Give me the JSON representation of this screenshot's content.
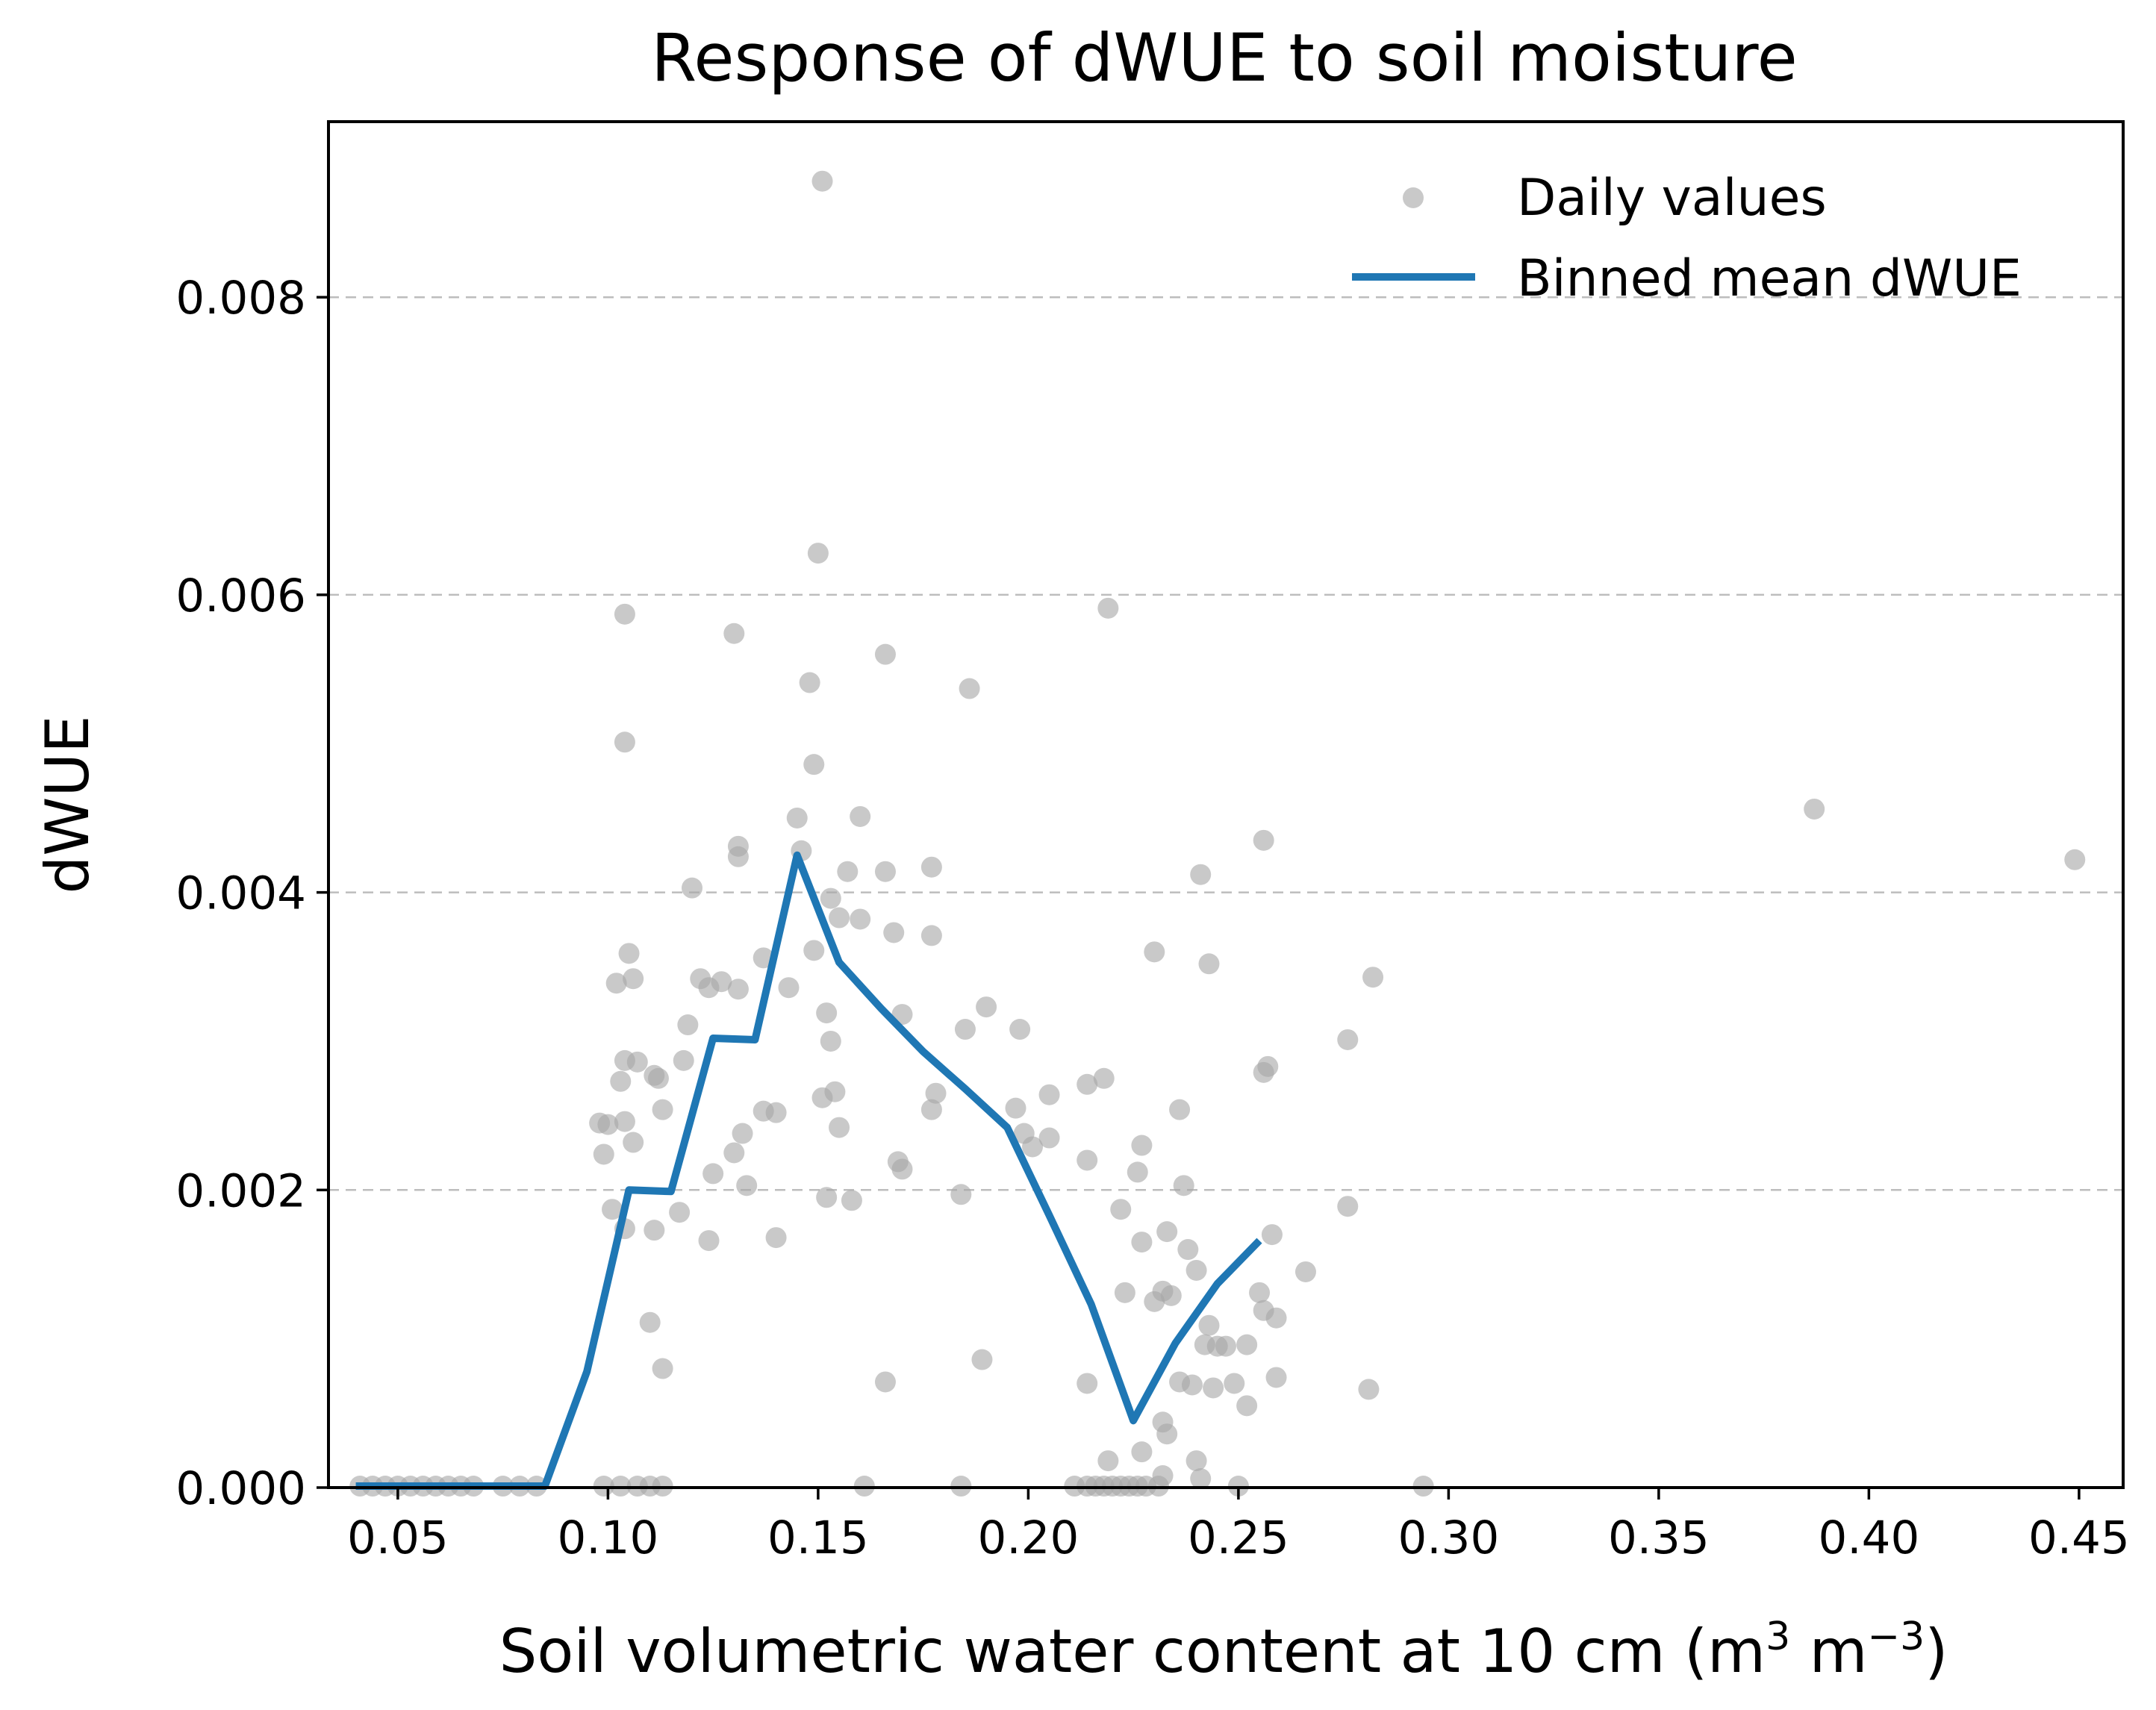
{
  "chart_data": {
    "type": "scatter",
    "title": "Response of dWUE to soil moisture",
    "xlabel": "Soil volumetric water content at 10 cm (m",
    "xlabel_sup1": "3",
    "xlabel_mid": " m",
    "xlabel_sup2": "−3",
    "xlabel_end": ")",
    "ylabel": "dWUE",
    "xlim": [
      0.0335,
      0.4605
    ],
    "ylim": [
      0.0,
      0.00918
    ],
    "xticks": [
      0.05,
      0.1,
      0.15,
      0.2,
      0.25,
      0.3,
      0.35,
      0.4,
      0.45
    ],
    "xtick_labels": [
      "0.05",
      "0.10",
      "0.15",
      "0.20",
      "0.25",
      "0.30",
      "0.35",
      "0.40",
      "0.45"
    ],
    "yticks": [
      0.0,
      0.002,
      0.004,
      0.006,
      0.008
    ],
    "ytick_labels": [
      "0.000",
      "0.002",
      "0.004",
      "0.006",
      "0.008"
    ],
    "grid": "horizontal dashed",
    "legend_position": "top-right",
    "colors": {
      "points": "#a8a8a8",
      "line": "#1f77b4",
      "grid": "#bdbdbd"
    },
    "series": [
      {
        "name": "Daily values",
        "kind": "scatter",
        "points": [
          [
            0.151,
            0.00878
          ],
          [
            0.15,
            0.00628
          ],
          [
            0.104,
            0.00587
          ],
          [
            0.13,
            0.00574
          ],
          [
            0.166,
            0.0056
          ],
          [
            0.219,
            0.00591
          ],
          [
            0.148,
            0.00541
          ],
          [
            0.186,
            0.00537
          ],
          [
            0.104,
            0.00501
          ],
          [
            0.149,
            0.00486
          ],
          [
            0.145,
            0.0045
          ],
          [
            0.16,
            0.00451
          ],
          [
            0.387,
            0.00456
          ],
          [
            0.256,
            0.00435
          ],
          [
            0.131,
            0.00431
          ],
          [
            0.146,
            0.00428
          ],
          [
            0.131,
            0.00424
          ],
          [
            0.449,
            0.00422
          ],
          [
            0.157,
            0.00414
          ],
          [
            0.166,
            0.00414
          ],
          [
            0.177,
            0.00417
          ],
          [
            0.241,
            0.00412
          ],
          [
            0.12,
            0.00403
          ],
          [
            0.153,
            0.00396
          ],
          [
            0.155,
            0.00383
          ],
          [
            0.16,
            0.00382
          ],
          [
            0.168,
            0.00373
          ],
          [
            0.177,
            0.00371
          ],
          [
            0.137,
            0.00356
          ],
          [
            0.105,
            0.00359
          ],
          [
            0.23,
            0.0036
          ],
          [
            0.149,
            0.00361
          ],
          [
            0.243,
            0.00352
          ],
          [
            0.102,
            0.00339
          ],
          [
            0.106,
            0.00342
          ],
          [
            0.122,
            0.00342
          ],
          [
            0.127,
            0.0034
          ],
          [
            0.131,
            0.00335
          ],
          [
            0.143,
            0.00336
          ],
          [
            0.124,
            0.00336
          ],
          [
            0.282,
            0.00343
          ],
          [
            0.19,
            0.00323
          ],
          [
            0.152,
            0.00319
          ],
          [
            0.17,
            0.00318
          ],
          [
            0.119,
            0.00311
          ],
          [
            0.185,
            0.00308
          ],
          [
            0.198,
            0.00308
          ],
          [
            0.276,
            0.00301
          ],
          [
            0.153,
            0.003
          ],
          [
            0.104,
            0.00287
          ],
          [
            0.107,
            0.00286
          ],
          [
            0.118,
            0.00287
          ],
          [
            0.111,
            0.00277
          ],
          [
            0.112,
            0.00275
          ],
          [
            0.103,
            0.00273
          ],
          [
            0.257,
            0.00283
          ],
          [
            0.256,
            0.00279
          ],
          [
            0.218,
            0.00275
          ],
          [
            0.214,
            0.00271
          ],
          [
            0.178,
            0.00265
          ],
          [
            0.154,
            0.00266
          ],
          [
            0.151,
            0.00262
          ],
          [
            0.205,
            0.00264
          ],
          [
            0.113,
            0.00254
          ],
          [
            0.137,
            0.00253
          ],
          [
            0.14,
            0.00252
          ],
          [
            0.177,
            0.00254
          ],
          [
            0.197,
            0.00255
          ],
          [
            0.236,
            0.00254
          ],
          [
            0.098,
            0.00245
          ],
          [
            0.1,
            0.00244
          ],
          [
            0.104,
            0.00246
          ],
          [
            0.132,
            0.00238
          ],
          [
            0.155,
            0.00242
          ],
          [
            0.199,
            0.00238
          ],
          [
            0.205,
            0.00235
          ],
          [
            0.106,
            0.00232
          ],
          [
            0.13,
            0.00225
          ],
          [
            0.099,
            0.00224
          ],
          [
            0.201,
            0.00229
          ],
          [
            0.227,
            0.0023
          ],
          [
            0.214,
            0.0022
          ],
          [
            0.169,
            0.00219
          ],
          [
            0.17,
            0.00214
          ],
          [
            0.125,
            0.00211
          ],
          [
            0.226,
            0.00212
          ],
          [
            0.133,
            0.00203
          ],
          [
            0.237,
            0.00203
          ],
          [
            0.152,
            0.00195
          ],
          [
            0.158,
            0.00193
          ],
          [
            0.184,
            0.00197
          ],
          [
            0.101,
            0.00187
          ],
          [
            0.117,
            0.00185
          ],
          [
            0.222,
            0.00187
          ],
          [
            0.276,
            0.00189
          ],
          [
            0.104,
            0.00174
          ],
          [
            0.111,
            0.00173
          ],
          [
            0.14,
            0.00168
          ],
          [
            0.124,
            0.00166
          ],
          [
            0.233,
            0.00172
          ],
          [
            0.258,
            0.0017
          ],
          [
            0.227,
            0.00165
          ],
          [
            0.238,
            0.0016
          ],
          [
            0.266,
            0.00145
          ],
          [
            0.24,
            0.00146
          ],
          [
            0.223,
            0.00131
          ],
          [
            0.23,
            0.00125
          ],
          [
            0.232,
            0.00132
          ],
          [
            0.234,
            0.00129
          ],
          [
            0.255,
            0.00131
          ],
          [
            0.256,
            0.00119
          ],
          [
            0.259,
            0.00114
          ],
          [
            0.243,
            0.00109
          ],
          [
            0.11,
            0.00111
          ],
          [
            0.242,
            0.00096
          ],
          [
            0.245,
            0.00095
          ],
          [
            0.247,
            0.00095
          ],
          [
            0.252,
            0.00096
          ],
          [
            0.113,
            0.0008
          ],
          [
            0.189,
            0.00086
          ],
          [
            0.166,
            0.00071
          ],
          [
            0.214,
            0.0007
          ],
          [
            0.236,
            0.00071
          ],
          [
            0.239,
            0.00069
          ],
          [
            0.249,
            0.0007
          ],
          [
            0.259,
            0.00074
          ],
          [
            0.281,
            0.00066
          ],
          [
            0.244,
            0.00067
          ],
          [
            0.252,
            0.00055
          ],
          [
            0.232,
            0.00044
          ],
          [
            0.233,
            0.00036
          ],
          [
            0.227,
            0.00024
          ],
          [
            0.219,
            0.00018
          ],
          [
            0.24,
            0.00018
          ],
          [
            0.232,
            8e-05
          ],
          [
            0.241,
            6e-05
          ],
          [
            0.041,
            1e-05
          ],
          [
            0.044,
            1e-05
          ],
          [
            0.047,
            1e-05
          ],
          [
            0.05,
            1e-05
          ],
          [
            0.053,
            1e-05
          ],
          [
            0.056,
            1e-05
          ],
          [
            0.059,
            1e-05
          ],
          [
            0.062,
            1e-05
          ],
          [
            0.065,
            1e-05
          ],
          [
            0.068,
            1e-05
          ],
          [
            0.075,
            1e-05
          ],
          [
            0.079,
            1e-05
          ],
          [
            0.083,
            1e-05
          ],
          [
            0.099,
            1e-05
          ],
          [
            0.103,
            1e-05
          ],
          [
            0.107,
            1e-05
          ],
          [
            0.11,
            1e-05
          ],
          [
            0.113,
            1e-05
          ],
          [
            0.161,
            1e-05
          ],
          [
            0.184,
            1e-05
          ],
          [
            0.211,
            1e-05
          ],
          [
            0.214,
            1e-05
          ],
          [
            0.216,
            1e-05
          ],
          [
            0.218,
            1e-05
          ],
          [
            0.22,
            1e-05
          ],
          [
            0.222,
            1e-05
          ],
          [
            0.224,
            1e-05
          ],
          [
            0.226,
            1e-05
          ],
          [
            0.228,
            1e-05
          ],
          [
            0.231,
            1e-05
          ],
          [
            0.25,
            1e-05
          ],
          [
            0.294,
            1e-05
          ]
        ]
      },
      {
        "name": "Binned mean dWUE",
        "kind": "line",
        "x": [
          0.04,
          0.045,
          0.055,
          0.065,
          0.075,
          0.085,
          0.095,
          0.105,
          0.115,
          0.125,
          0.135,
          0.145,
          0.155,
          0.165,
          0.175,
          0.185,
          0.195,
          0.205,
          0.215,
          0.225,
          0.235,
          0.245,
          0.255
        ],
        "y": [
          1e-05,
          1e-05,
          1e-05,
          1e-05,
          1e-05,
          1e-05,
          0.00078,
          0.002,
          0.00199,
          0.00302,
          0.00301,
          0.00425,
          0.00353,
          0.00322,
          0.00293,
          0.00268,
          0.00242,
          0.00183,
          0.00123,
          0.00045,
          0.00097,
          0.00137,
          0.00166
        ]
      }
    ]
  }
}
